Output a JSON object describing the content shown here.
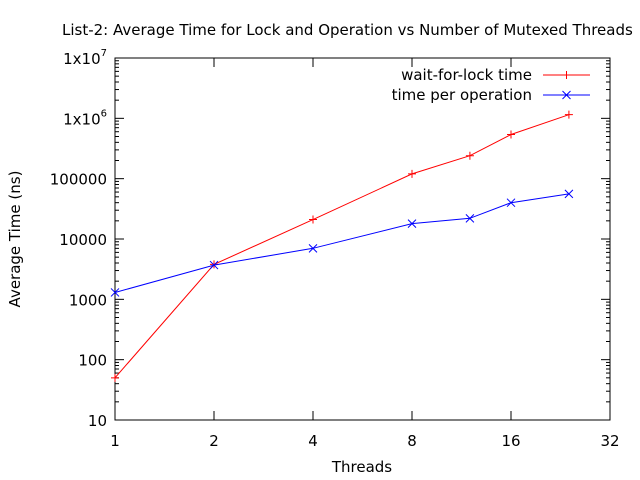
{
  "chart_data": {
    "type": "line",
    "title": "List-2: Average Time for Lock and Operation vs Number of Mutexed Threads",
    "xlabel": "Threads",
    "ylabel": "Average Time (ns)",
    "x_scale": "log2",
    "y_scale": "log10",
    "xlim": [
      1,
      32
    ],
    "ylim": [
      10,
      10000000
    ],
    "x_ticks": [
      "1",
      "2",
      "4",
      "8",
      "16",
      "32"
    ],
    "y_ticks": [
      {
        "base": "10",
        "exp": ""
      },
      {
        "base": "100",
        "exp": ""
      },
      {
        "base": "1000",
        "exp": ""
      },
      {
        "base": "10000",
        "exp": ""
      },
      {
        "base": "100000",
        "exp": ""
      },
      {
        "base": "1x10",
        "exp": "6"
      },
      {
        "base": "1x10",
        "exp": "7"
      }
    ],
    "grid": false,
    "legend_position": "top-right",
    "series": [
      {
        "name": "wait-for-lock time",
        "color": "#ff0000",
        "marker": "plus",
        "x": [
          1,
          2,
          4,
          8,
          12,
          16,
          24
        ],
        "y": [
          50,
          3800,
          21000,
          120000,
          240000,
          540000,
          1150000
        ]
      },
      {
        "name": "time per operation",
        "color": "#0000ff",
        "marker": "cross",
        "x": [
          1,
          2,
          4,
          8,
          12,
          16,
          24
        ],
        "y": [
          1300,
          3700,
          7000,
          18000,
          22000,
          40000,
          56000
        ]
      }
    ]
  }
}
